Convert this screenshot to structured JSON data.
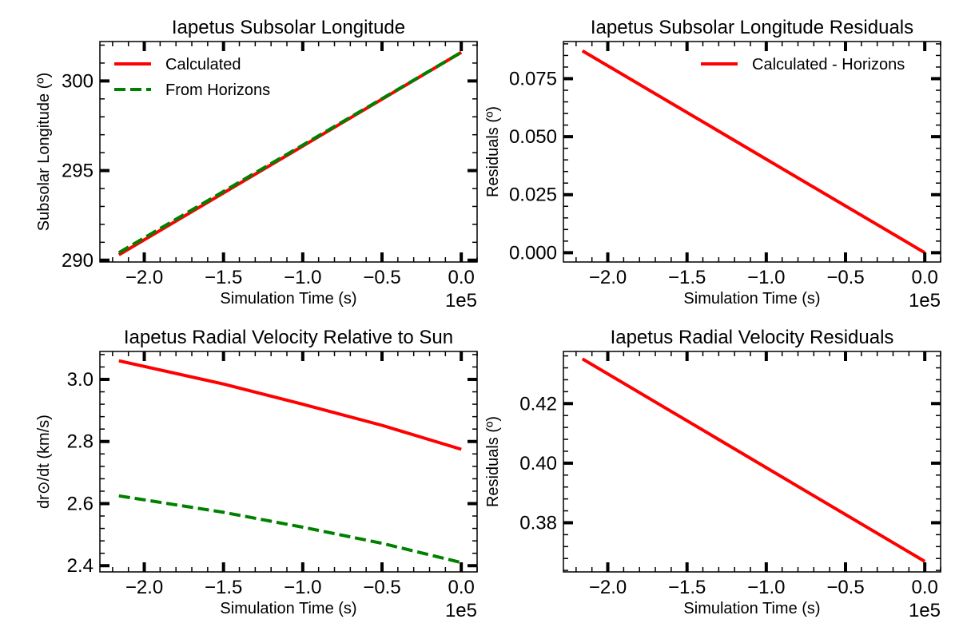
{
  "chart_data": [
    {
      "type": "line",
      "title": "Iapetus Subsolar Longitude",
      "xlabel": "Simulation Time (s)",
      "ylabel": "Subsolar Longitude (º)",
      "x_offset_label": "1e5",
      "xlim": [
        -2.28,
        0.1
      ],
      "ylim": [
        289.9,
        302.2
      ],
      "xticks": [
        -2.0,
        -1.5,
        -1.0,
        -0.5,
        0.0
      ],
      "xtick_labels": [
        "−2.0",
        "−1.5",
        "−1.0",
        "−0.5",
        "0.0"
      ],
      "yticks": [
        290,
        295,
        300
      ],
      "ytick_labels": [
        "290",
        "295",
        "300"
      ],
      "legend_position": "top-left",
      "grid": false,
      "series": [
        {
          "name": "Calculated",
          "color": "#ff0000",
          "style": "solid",
          "x": [
            -2.16,
            0.0
          ],
          "y": [
            290.3,
            301.6
          ]
        },
        {
          "name": "From Horizons",
          "color": "#008000",
          "style": "dashed",
          "x": [
            -2.16,
            0.0
          ],
          "y": [
            290.42,
            301.6
          ]
        }
      ]
    },
    {
      "type": "line",
      "title": "Iapetus Subsolar Longitude Residuals",
      "xlabel": "Simulation Time (s)",
      "ylabel": "Residuals (º)",
      "x_offset_label": "1e5",
      "xlim": [
        -2.28,
        0.1
      ],
      "ylim": [
        -0.004,
        0.091
      ],
      "xticks": [
        -2.0,
        -1.5,
        -1.0,
        -0.5,
        0.0
      ],
      "xtick_labels": [
        "−2.0",
        "−1.5",
        "−1.0",
        "−0.5",
        "0.0"
      ],
      "yticks": [
        0.0,
        0.025,
        0.05,
        0.075
      ],
      "ytick_labels": [
        "0.000",
        "0.025",
        "0.050",
        "0.075"
      ],
      "legend_position": "top-right",
      "grid": false,
      "series": [
        {
          "name": "Calculated - Horizons",
          "color": "#ff0000",
          "style": "solid",
          "x": [
            -2.16,
            0.0
          ],
          "y": [
            0.087,
            0.0
          ]
        }
      ]
    },
    {
      "type": "line",
      "title": "Iapetus Radial Velocity Relative to Sun",
      "xlabel": "Simulation Time (s)",
      "ylabel": "dr⊙/dt (km/s)",
      "x_offset_label": "1e5",
      "xlim": [
        -2.28,
        0.1
      ],
      "ylim": [
        2.38,
        3.09
      ],
      "xticks": [
        -2.0,
        -1.5,
        -1.0,
        -0.5,
        0.0
      ],
      "xtick_labels": [
        "−2.0",
        "−1.5",
        "−1.0",
        "−0.5",
        "0.0"
      ],
      "yticks": [
        2.4,
        2.6,
        2.8,
        3.0
      ],
      "ytick_labels": [
        "2.4",
        "2.6",
        "2.8",
        "3.0"
      ],
      "grid": false,
      "series": [
        {
          "color": "#ff0000",
          "style": "solid",
          "x": [
            -2.16,
            -1.5,
            -1.0,
            -0.5,
            0.0
          ],
          "y": [
            3.06,
            2.985,
            2.92,
            2.852,
            2.775
          ]
        },
        {
          "color": "#008000",
          "style": "dashed",
          "x": [
            -2.16,
            -1.5,
            -1.0,
            -0.5,
            0.0
          ],
          "y": [
            2.625,
            2.572,
            2.524,
            2.472,
            2.41
          ]
        }
      ]
    },
    {
      "type": "line",
      "title": "Iapetus Radial Velocity Residuals",
      "xlabel": "Simulation Time (s)",
      "ylabel": "Residuals (º)",
      "x_offset_label": "1e5",
      "xlim": [
        -2.28,
        0.1
      ],
      "ylim": [
        0.3635,
        0.4375
      ],
      "xticks": [
        -2.0,
        -1.5,
        -1.0,
        -0.5,
        0.0
      ],
      "xtick_labels": [
        "−2.0",
        "−1.5",
        "−1.0",
        "−0.5",
        "0.0"
      ],
      "yticks": [
        0.38,
        0.4,
        0.42
      ],
      "ytick_labels": [
        "0.38",
        "0.40",
        "0.42"
      ],
      "grid": false,
      "series": [
        {
          "color": "#ff0000",
          "style": "solid",
          "x": [
            -2.16,
            0.0
          ],
          "y": [
            0.435,
            0.367
          ]
        }
      ]
    }
  ]
}
